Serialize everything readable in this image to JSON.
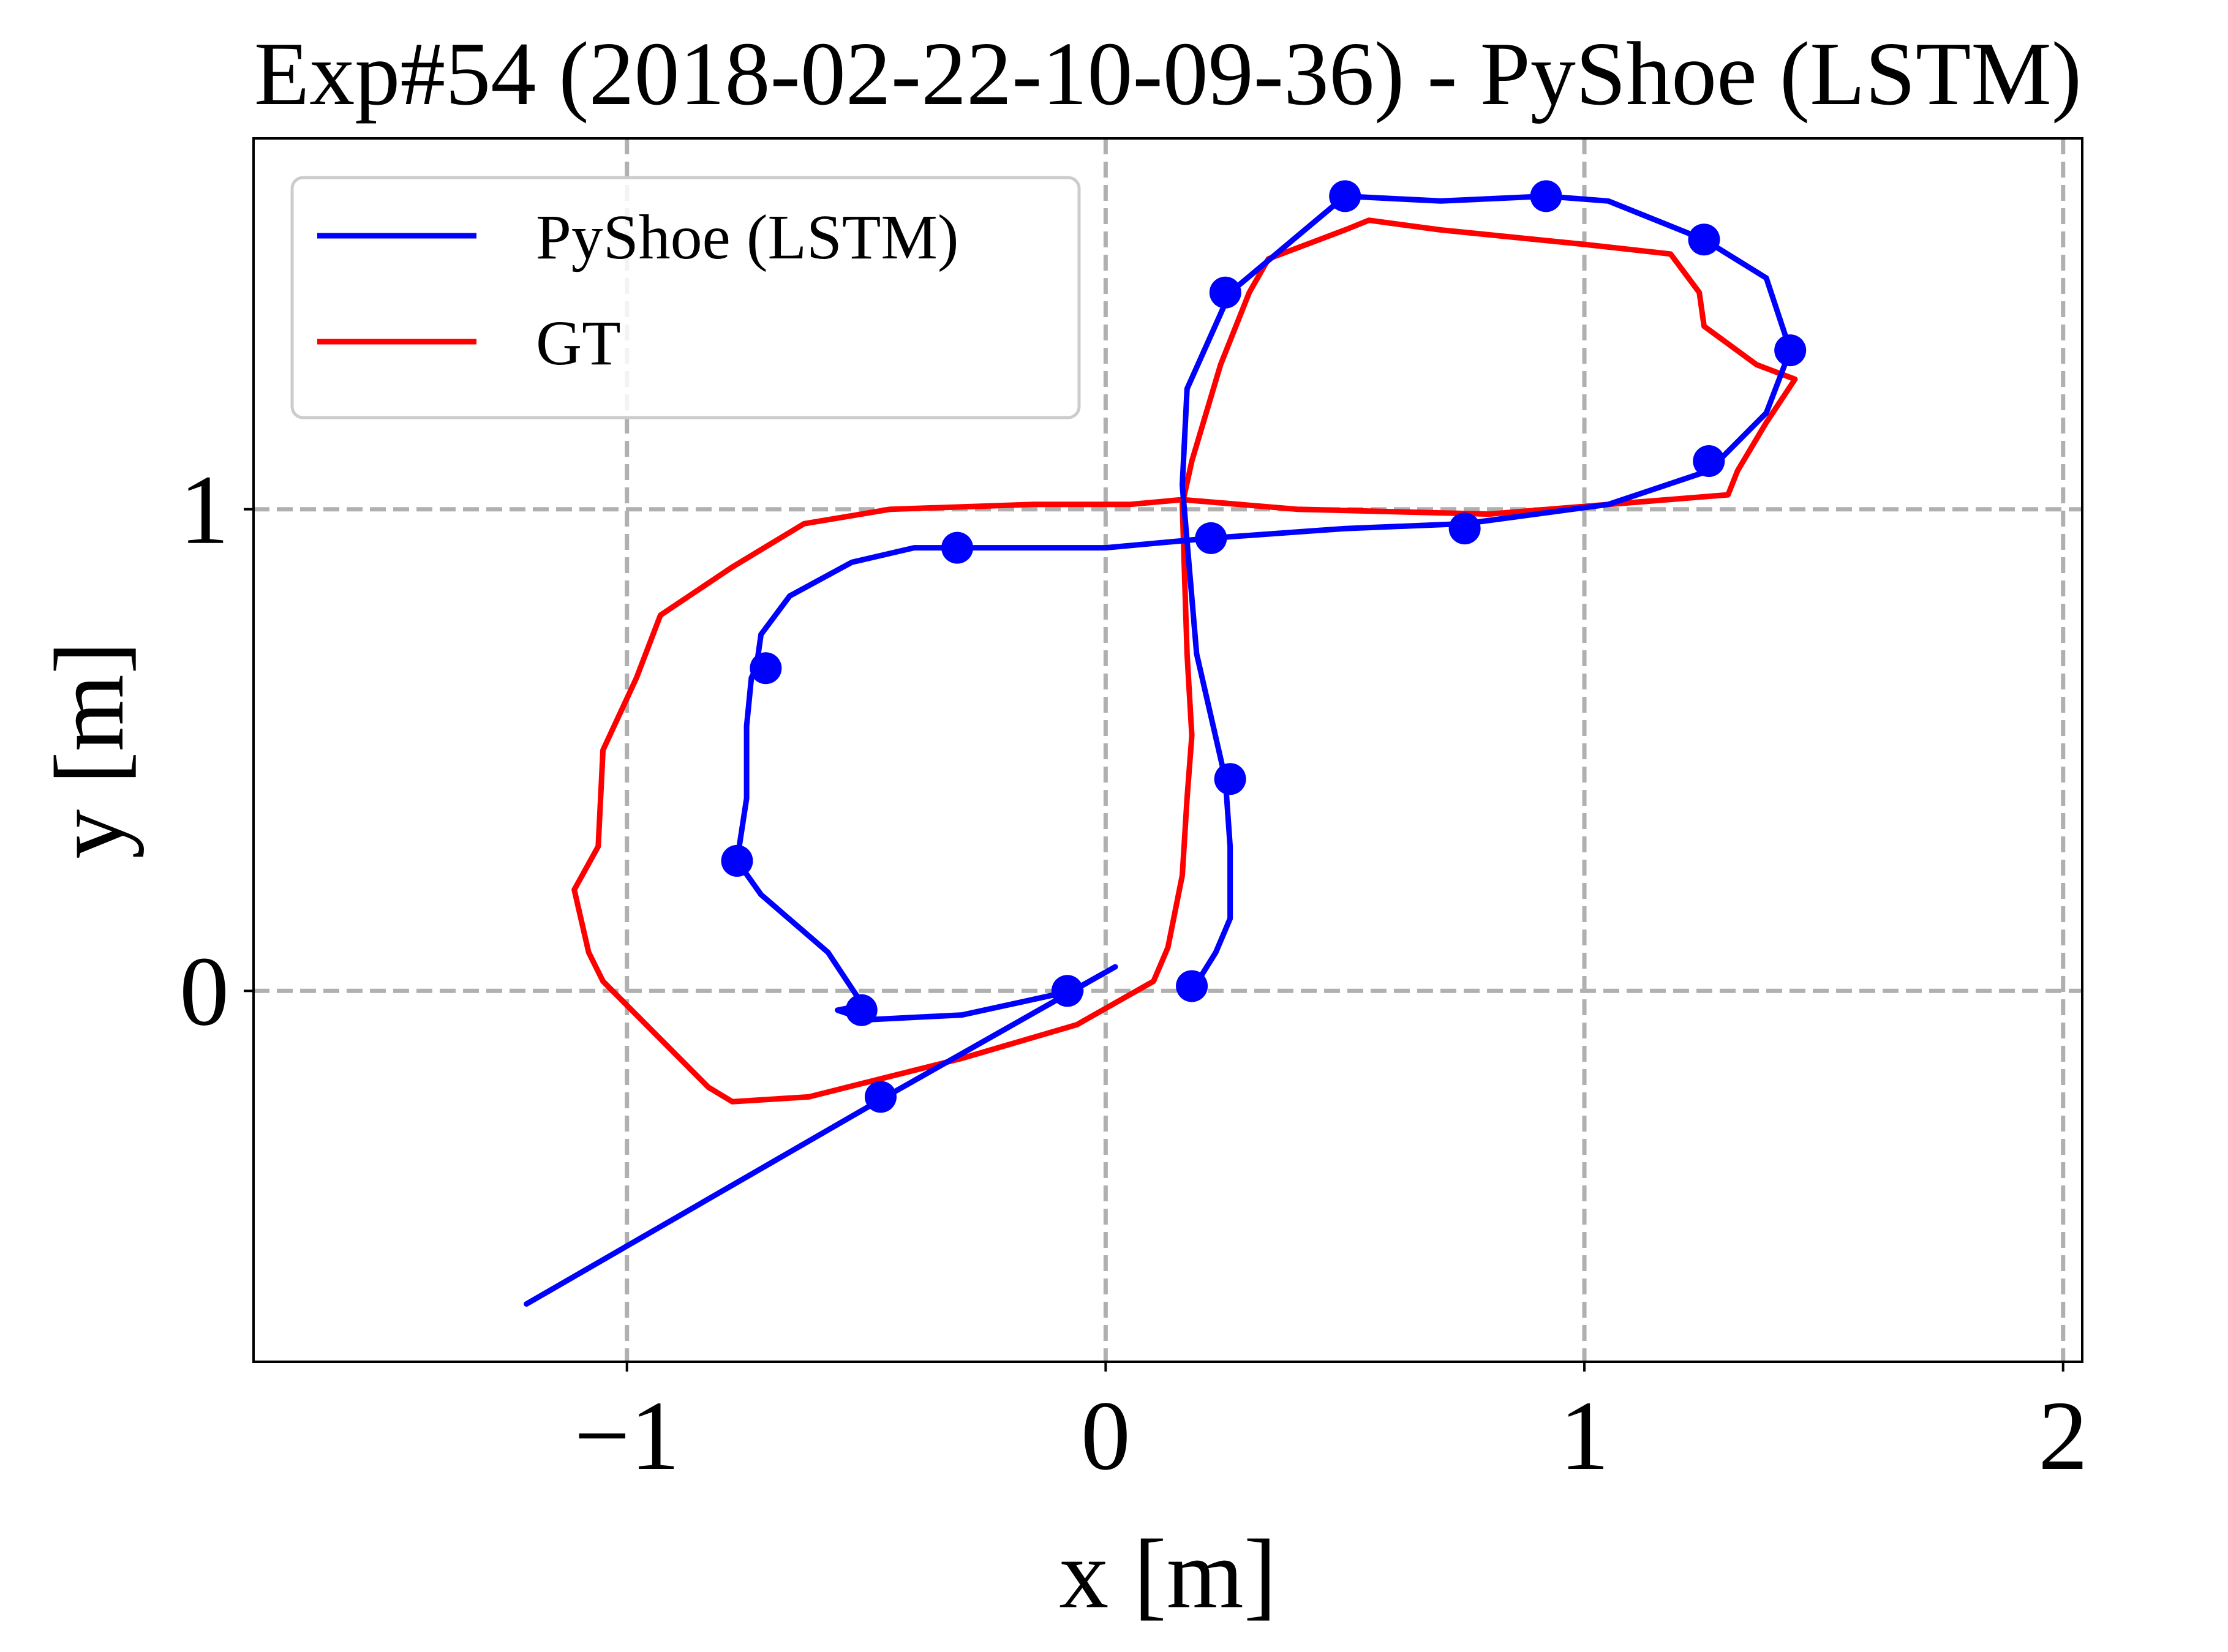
{
  "chart_data": {
    "type": "line",
    "title": "Exp#54 (2018-02-22-10-09-36) - PyShoe (LSTM)",
    "xlabel": "x [m]",
    "ylabel": "y [m]",
    "xlim": [
      -1.78,
      2.04
    ],
    "ylim": [
      -0.77,
      1.77
    ],
    "xticks": [
      -1,
      0,
      1,
      2
    ],
    "xtick_labels": [
      "−1",
      "0",
      "1",
      "2"
    ],
    "yticks": [
      0,
      1
    ],
    "ytick_labels": [
      "0",
      "1"
    ],
    "grid": true,
    "legend_position": "top-left",
    "series": [
      {
        "name": "PyShoe (LSTM)",
        "color": "#0000ff",
        "x": [
          -1.21,
          -0.46,
          0.02,
          -0.07,
          -0.3,
          -0.5,
          -0.56,
          -0.51,
          -0.51,
          -0.52,
          -0.58,
          -0.72,
          -0.77,
          -0.75,
          -0.75,
          -0.74,
          -0.73,
          -0.72,
          -0.66,
          -0.53,
          -0.4,
          -0.31,
          0.0,
          0.22,
          0.5,
          0.75,
          1.05,
          1.26,
          1.38,
          1.43,
          1.38,
          1.25,
          1.05,
          0.92,
          0.7,
          0.5,
          0.26,
          0.17,
          0.16,
          0.19,
          0.25,
          0.26,
          0.26,
          0.23,
          0.18
        ],
        "y": [
          -0.65,
          -0.22,
          0.05,
          0.0,
          -0.05,
          -0.06,
          -0.04,
          -0.03,
          -0.05,
          -0.01,
          0.08,
          0.2,
          0.27,
          0.4,
          0.55,
          0.65,
          0.67,
          0.74,
          0.82,
          0.89,
          0.92,
          0.92,
          0.92,
          0.94,
          0.96,
          0.97,
          1.01,
          1.08,
          1.2,
          1.33,
          1.48,
          1.56,
          1.64,
          1.65,
          1.64,
          1.65,
          1.45,
          1.25,
          1.05,
          0.7,
          0.44,
          0.3,
          0.15,
          0.08,
          0.0
        ],
        "markers_x": [
          -0.08,
          -0.51,
          -0.47,
          -0.77,
          -0.71,
          -0.31,
          0.22,
          0.75,
          1.26,
          1.43,
          1.25,
          0.92,
          0.5,
          0.25,
          0.26,
          0.18
        ],
        "markers_y": [
          0.0,
          -0.04,
          -0.22,
          0.27,
          0.67,
          0.92,
          0.94,
          0.96,
          1.1,
          1.33,
          1.56,
          1.65,
          1.65,
          1.45,
          0.44,
          0.01
        ]
      },
      {
        "name": "GT",
        "color": "#ff0000",
        "x": [
          0.1,
          -0.06,
          -0.3,
          -0.62,
          -0.78,
          -0.83,
          -0.98,
          -1.05,
          -1.08,
          -1.11,
          -1.06,
          -1.05,
          -0.98,
          -0.93,
          -0.78,
          -0.63,
          -0.45,
          -0.15,
          0.05,
          0.16,
          0.4,
          0.8,
          1.3,
          1.32,
          1.38,
          1.44,
          1.36,
          1.25,
          1.24,
          1.18,
          1.0,
          0.7,
          0.55,
          0.5,
          0.34,
          0.3,
          0.24,
          0.18,
          0.16,
          0.17,
          0.18,
          0.17,
          0.16,
          0.13,
          0.1
        ],
        "y": [
          0.02,
          -0.07,
          -0.14,
          -0.22,
          -0.23,
          -0.2,
          -0.05,
          0.02,
          0.08,
          0.21,
          0.3,
          0.5,
          0.65,
          0.78,
          0.88,
          0.97,
          1.0,
          1.01,
          1.01,
          1.02,
          1.0,
          0.99,
          1.03,
          1.08,
          1.18,
          1.27,
          1.3,
          1.38,
          1.45,
          1.53,
          1.55,
          1.58,
          1.6,
          1.58,
          1.52,
          1.45,
          1.3,
          1.1,
          1.01,
          0.7,
          0.53,
          0.4,
          0.24,
          0.09,
          0.02
        ]
      }
    ]
  }
}
